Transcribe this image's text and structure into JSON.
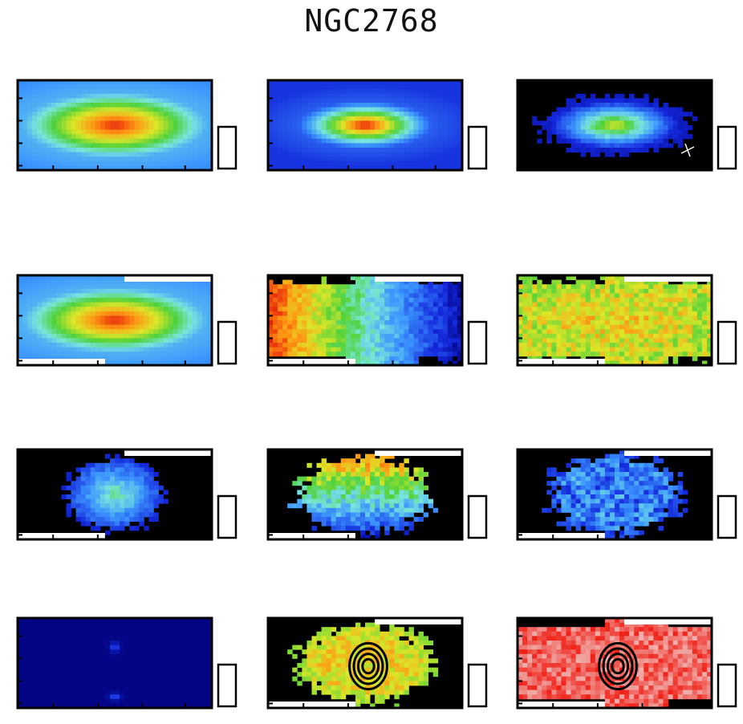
{
  "figure_title": "NGC2768",
  "chart_data": [
    {
      "type": "heatmap",
      "title": "",
      "pattern": "galaxy-elliptical",
      "colorbar": "",
      "xticks": [
        "",
        "",
        "",
        ""
      ],
      "yticks": [
        "",
        "",
        "",
        ""
      ]
    },
    {
      "type": "heatmap",
      "title": "",
      "pattern": "galaxy-compact",
      "colorbar": "",
      "xticks": [
        "",
        "",
        "",
        ""
      ],
      "yticks": [
        "",
        "",
        "",
        ""
      ]
    },
    {
      "type": "heatmap",
      "title": "",
      "pattern": "galaxy-noisy-dark",
      "colorbar": "",
      "xticks": [
        "",
        "",
        "",
        ""
      ],
      "yticks": [
        "",
        "",
        "",
        ""
      ]
    },
    {
      "type": "heatmap",
      "title": "",
      "pattern": "galaxy-elliptical",
      "colorbar": "",
      "xticks": [
        "",
        "",
        "",
        ""
      ],
      "yticks": [
        "",
        "",
        "",
        ""
      ]
    },
    {
      "type": "heatmap",
      "title": "",
      "pattern": "velocity-gradient",
      "colorbar": "",
      "xticks": [
        "",
        "",
        "",
        ""
      ],
      "yticks": [
        "",
        "",
        "",
        ""
      ]
    },
    {
      "type": "heatmap",
      "title": "",
      "pattern": "dispersion-noise",
      "colorbar": "",
      "xticks": [
        "",
        "",
        "",
        ""
      ],
      "yticks": [
        "",
        "",
        "",
        ""
      ]
    },
    {
      "type": "heatmap",
      "title": "",
      "pattern": "flux-dark",
      "colorbar": "",
      "xticks": [
        "",
        "",
        "",
        ""
      ],
      "yticks": [
        "",
        "",
        "",
        ""
      ]
    },
    {
      "type": "heatmap",
      "title": "",
      "pattern": "gas-velocity",
      "colorbar": "",
      "xticks": [
        "",
        "",
        "",
        ""
      ],
      "yticks": [
        "",
        "",
        "",
        ""
      ]
    },
    {
      "type": "heatmap",
      "title": "",
      "pattern": "gas-dispersion",
      "colorbar": "",
      "xticks": [
        "",
        "",
        "",
        ""
      ],
      "yticks": [
        "",
        "",
        "",
        ""
      ]
    },
    {
      "type": "heatmap",
      "title": "",
      "pattern": "dark-spots",
      "colorbar": "",
      "xticks": [
        "",
        "",
        "",
        ""
      ],
      "yticks": [
        "",
        "",
        "",
        ""
      ]
    },
    {
      "type": "heatmap",
      "title": "",
      "pattern": "ratio-contour",
      "colorbar": "",
      "xticks": [
        "",
        "",
        "",
        ""
      ],
      "yticks": [
        "",
        "",
        "",
        ""
      ]
    },
    {
      "type": "heatmap",
      "title": "",
      "pattern": "ratio-red-contour",
      "colorbar": "",
      "xticks": [
        "",
        "",
        "",
        ""
      ],
      "yticks": [
        "",
        "",
        "",
        ""
      ]
    }
  ]
}
